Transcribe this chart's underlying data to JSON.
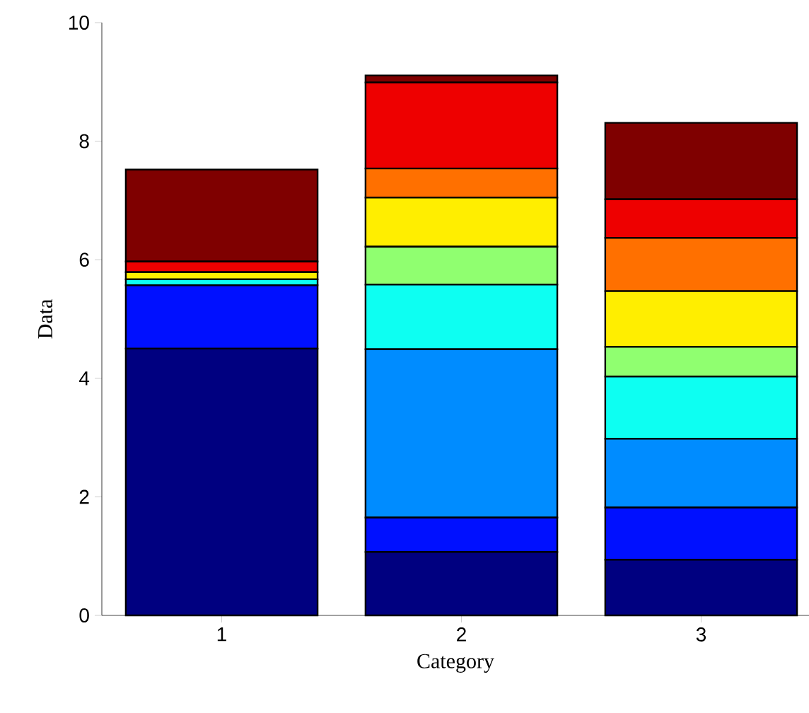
{
  "chart_data": {
    "type": "bar",
    "stacked": true,
    "xlabel": "Category",
    "ylabel": "Data",
    "categories": [
      "1",
      "2",
      "3"
    ],
    "series": [
      {
        "color": "#000080",
        "values": [
          4.5,
          1.07,
          0.94
        ]
      },
      {
        "color": "#0010ff",
        "values": [
          1.07,
          0.58,
          0.88
        ]
      },
      {
        "color": "#008cff",
        "values": [
          0,
          2.84,
          1.16
        ]
      },
      {
        "color": "#0dfff2",
        "values": [
          0.1,
          1.09,
          1.05
        ]
      },
      {
        "color": "#90ff70",
        "values": [
          0,
          0.64,
          0.5
        ]
      },
      {
        "color": "#ffee00",
        "values": [
          0.12,
          0.83,
          0.94
        ]
      },
      {
        "color": "#ff7000",
        "values": [
          null,
          0.49,
          0.9
        ]
      },
      {
        "color": "#ee0000",
        "values": [
          0.18,
          1.45,
          0.65
        ]
      },
      {
        "color": "#7f0000",
        "values": [
          1.55,
          0.12,
          1.29
        ]
      }
    ],
    "ylim": [
      0,
      10
    ],
    "yticks": [
      0,
      2,
      4,
      6,
      8,
      10
    ]
  }
}
